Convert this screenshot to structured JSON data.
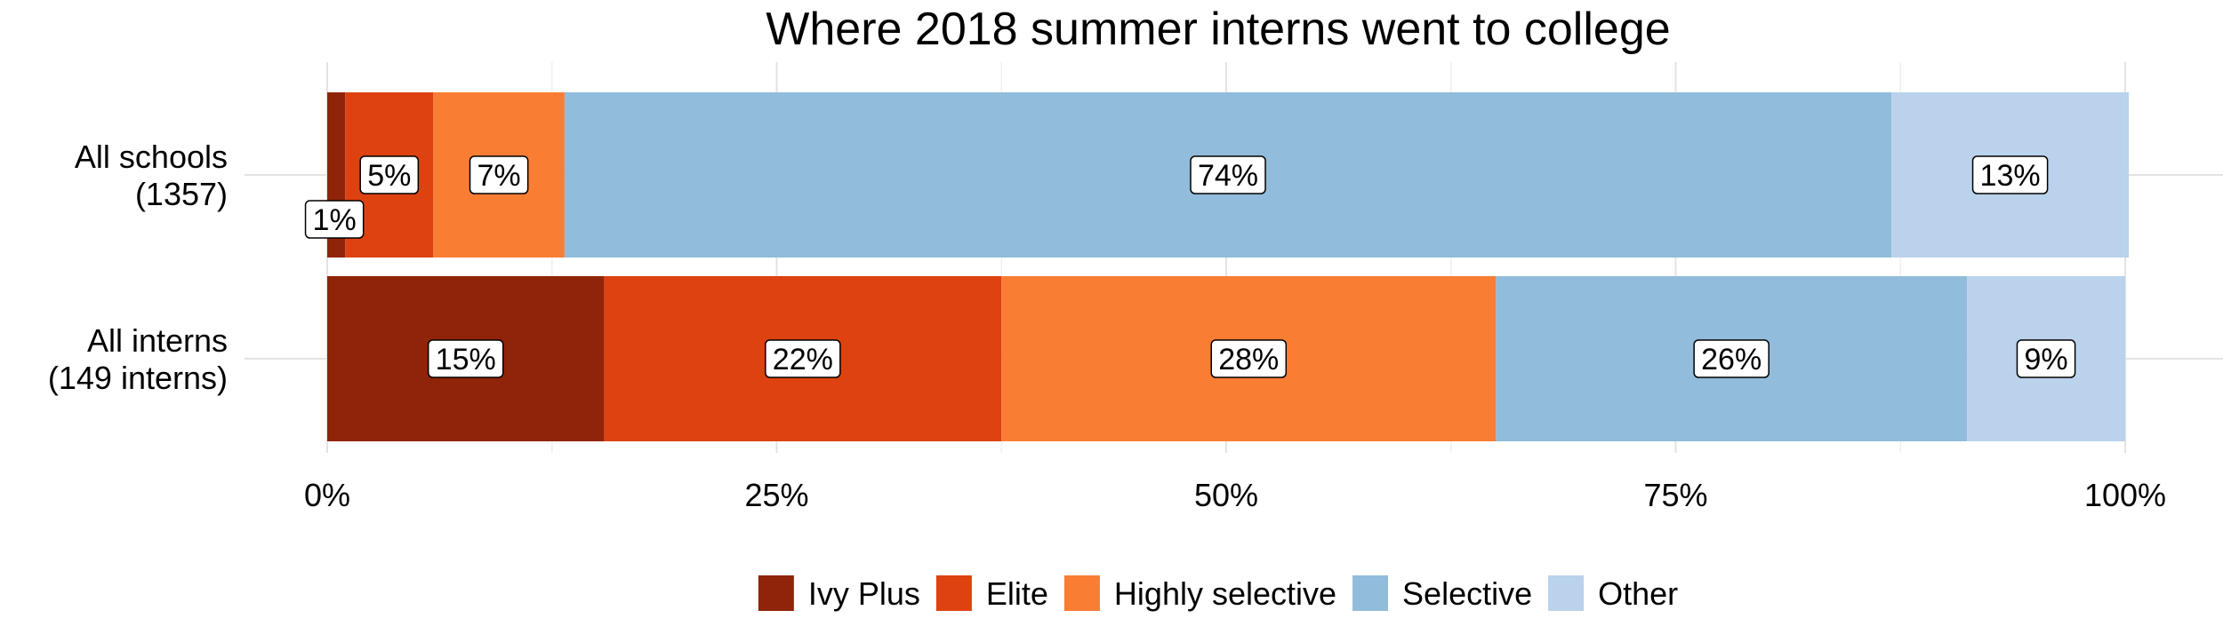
{
  "chart_data": {
    "type": "bar",
    "orientation": "horizontal",
    "stacked": true,
    "title": "Where 2018 summer interns went to college",
    "xlabel": "",
    "ylabel": "",
    "xlim": [
      0,
      100
    ],
    "x_ticks": [
      0,
      25,
      50,
      75,
      100
    ],
    "x_tick_labels": [
      "0%",
      "25%",
      "50%",
      "75%",
      "100%"
    ],
    "grid": true,
    "legend_position": "bottom",
    "categories": [
      {
        "label_line1": "All schools",
        "label_line2": "(1357)"
      },
      {
        "label_line1": "All interns",
        "label_line2": "(149 interns)"
      }
    ],
    "series": [
      {
        "name": "Ivy Plus",
        "color": "#8f2408",
        "values": [
          1,
          15.4
        ],
        "labels": [
          "1%",
          "15%"
        ]
      },
      {
        "name": "Elite",
        "color": "#dd4210",
        "values": [
          4.9,
          22.1
        ],
        "labels": [
          "5%",
          "22%"
        ]
      },
      {
        "name": "Highly selective",
        "color": "#f97d33",
        "values": [
          7.3,
          27.5
        ],
        "labels": [
          "7%",
          "28%"
        ]
      },
      {
        "name": "Selective",
        "color": "#91bcdb",
        "values": [
          73.8,
          26.2
        ],
        "labels": [
          "74%",
          "26%"
        ]
      },
      {
        "name": "Other",
        "color": "#bad2eb",
        "values": [
          13.2,
          8.8
        ],
        "labels": [
          "13%",
          "9%"
        ]
      }
    ]
  }
}
